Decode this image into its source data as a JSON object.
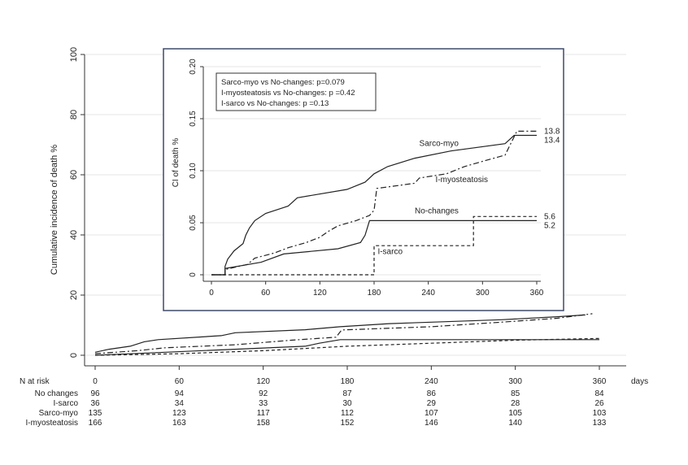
{
  "chart_data": [
    {
      "type": "line",
      "role": "main",
      "ylabel": "Cumulative incidence of death %",
      "xlabel": "days",
      "xlim": [
        0,
        360
      ],
      "ylim": [
        0,
        100
      ],
      "x_ticks": [
        "0",
        "60",
        "120",
        "180",
        "240",
        "300",
        "360"
      ],
      "y_ticks": [
        "0",
        "20",
        "40",
        "60",
        "80",
        "100"
      ],
      "series": [
        {
          "name": "Sarco-myo",
          "style": "solid",
          "points": [
            [
              0,
              1
            ],
            [
              10,
              2
            ],
            [
              25,
              3
            ],
            [
              35,
              4.5
            ],
            [
              45,
              5.2
            ],
            [
              90,
              6.5
            ],
            [
              100,
              7.5
            ],
            [
              150,
              8.5
            ],
            [
              175,
              9.5
            ],
            [
              210,
              10.5
            ],
            [
              240,
              11
            ],
            [
              290,
              11.8
            ],
            [
              330,
              12.8
            ],
            [
              350,
              13.4
            ]
          ]
        },
        {
          "name": "I-myosteatosis",
          "style": "dashdot",
          "points": [
            [
              0,
              0.5
            ],
            [
              30,
              1.5
            ],
            [
              50,
              2.5
            ],
            [
              100,
              3.5
            ],
            [
              140,
              5
            ],
            [
              172,
              6
            ],
            [
              176,
              8.4
            ],
            [
              240,
              9.5
            ],
            [
              290,
              11
            ],
            [
              330,
              12.3
            ],
            [
              355,
              13.8
            ]
          ]
        },
        {
          "name": "No-changes",
          "style": "solid",
          "points": [
            [
              0,
              0
            ],
            [
              50,
              1
            ],
            [
              100,
              2
            ],
            [
              150,
              3
            ],
            [
              160,
              4
            ],
            [
              175,
              5.2
            ],
            [
              360,
              5.2
            ]
          ]
        },
        {
          "name": "I-sarco",
          "style": "dashed",
          "points": [
            [
              0,
              0
            ],
            [
              60,
              0.5
            ],
            [
              120,
              1.5
            ],
            [
              180,
              3
            ],
            [
              240,
              4
            ],
            [
              300,
              5
            ],
            [
              360,
              5.6
            ]
          ]
        }
      ]
    },
    {
      "type": "line",
      "role": "inset",
      "ylabel": "CI of death %",
      "xlim": [
        0,
        360
      ],
      "ylim": [
        0,
        0.2
      ],
      "x_ticks": [
        "0",
        "60",
        "120",
        "180",
        "240",
        "300",
        "360"
      ],
      "y_ticks": [
        "0",
        "0.05",
        "0.10",
        "0.15",
        "0.20"
      ],
      "legend": [
        "Sarco-myo vs No-changes: p=0.079",
        "I-myosteatosis vs No-changes: p =0.42",
        "I-sarco vs No-changes: p =0.13"
      ],
      "series": [
        {
          "name": "Sarco-myo",
          "style": "solid",
          "end_label": "13.4",
          "points": [
            [
              0,
              0
            ],
            [
              15,
              0
            ],
            [
              15,
              0.008
            ],
            [
              18,
              0.015
            ],
            [
              25,
              0.023
            ],
            [
              35,
              0.03
            ],
            [
              38,
              0.038
            ],
            [
              42,
              0.045
            ],
            [
              48,
              0.052
            ],
            [
              60,
              0.059
            ],
            [
              85,
              0.066
            ],
            [
              95,
              0.074
            ],
            [
              150,
              0.082
            ],
            [
              170,
              0.089
            ],
            [
              180,
              0.097
            ],
            [
              195,
              0.104
            ],
            [
              225,
              0.112
            ],
            [
              265,
              0.119
            ],
            [
              325,
              0.126
            ],
            [
              330,
              0.13
            ],
            [
              335,
              0.134
            ],
            [
              360,
              0.134
            ]
          ]
        },
        {
          "name": "I-myosteatosis",
          "style": "dashdot",
          "end_label": "13.8",
          "points": [
            [
              0,
              0
            ],
            [
              15,
              0
            ],
            [
              15,
              0.005
            ],
            [
              40,
              0.01
            ],
            [
              48,
              0.016
            ],
            [
              70,
              0.021
            ],
            [
              85,
              0.026
            ],
            [
              105,
              0.031
            ],
            [
              120,
              0.036
            ],
            [
              130,
              0.042
            ],
            [
              140,
              0.047
            ],
            [
              160,
              0.052
            ],
            [
              175,
              0.057
            ],
            [
              180,
              0.062
            ],
            [
              183,
              0.083
            ],
            [
              225,
              0.088
            ],
            [
              230,
              0.093
            ],
            [
              260,
              0.097
            ],
            [
              280,
              0.104
            ],
            [
              300,
              0.109
            ],
            [
              325,
              0.115
            ],
            [
              330,
              0.124
            ],
            [
              338,
              0.138
            ],
            [
              360,
              0.138
            ]
          ]
        },
        {
          "name": "No-changes",
          "style": "solid",
          "end_label": "5.2",
          "points": [
            [
              0,
              0
            ],
            [
              15,
              0
            ],
            [
              15,
              0.006
            ],
            [
              55,
              0.012
            ],
            [
              80,
              0.02
            ],
            [
              140,
              0.025
            ],
            [
              165,
              0.031
            ],
            [
              170,
              0.038
            ],
            [
              175,
              0.052
            ],
            [
              360,
              0.052
            ]
          ]
        },
        {
          "name": "I-sarco",
          "style": "dashed",
          "end_label": "5.6",
          "points": [
            [
              0,
              0
            ],
            [
              180,
              0
            ],
            [
              180,
              0.028
            ],
            [
              290,
              0.028
            ],
            [
              290,
              0.056
            ],
            [
              360,
              0.056
            ]
          ]
        }
      ],
      "annotations": [
        {
          "text": "Sarco-myo",
          "x": 230,
          "y": 0.124
        },
        {
          "text": "I-myosteatosis",
          "x": 248,
          "y": 0.089
        },
        {
          "text": "No-changes",
          "x": 225,
          "y": 0.059
        },
        {
          "text": "I-sarco",
          "x": 184,
          "y": 0.02
        }
      ]
    }
  ],
  "risk_table": {
    "header": "N at risk",
    "unit": "days",
    "columns": [
      "0",
      "60",
      "120",
      "180",
      "240",
      "300",
      "360"
    ],
    "rows": [
      {
        "label": "No changes",
        "values": [
          "96",
          "94",
          "92",
          "87",
          "86",
          "85",
          "84"
        ]
      },
      {
        "label": "I-sarco",
        "values": [
          "36",
          "34",
          "33",
          "30",
          "29",
          "28",
          "26"
        ]
      },
      {
        "label": "Sarco-myo",
        "values": [
          "135",
          "123",
          "117",
          "112",
          "107",
          "105",
          "103"
        ]
      },
      {
        "label": "I-myosteatosis",
        "values": [
          "166",
          "163",
          "158",
          "152",
          "146",
          "140",
          "133"
        ]
      }
    ]
  }
}
